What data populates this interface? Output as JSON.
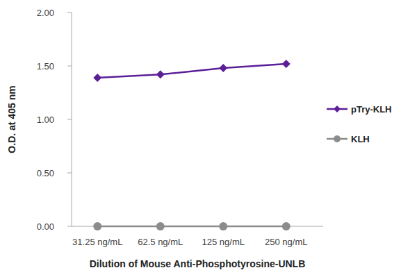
{
  "chart_data": {
    "type": "line",
    "x_label": "Dilution of Mouse Anti-Phosphotyrosine-UNLB",
    "y_label": "O.D. at 405 nm",
    "categories": [
      "31.25 ng/mL",
      "62.5 ng/mL",
      "125 ng/mL",
      "250 ng/mL"
    ],
    "series": [
      {
        "name": "pTry-KLH",
        "color": "#5b1f98",
        "marker": "diamond",
        "values": [
          1.39,
          1.42,
          1.48,
          1.52
        ]
      },
      {
        "name": "KLH",
        "color": "#8c8c8c",
        "marker": "circle",
        "values": [
          0,
          0,
          0,
          0
        ]
      }
    ],
    "ylim": [
      0,
      2
    ],
    "yticks": [
      {
        "value": 0,
        "label": "0.00"
      },
      {
        "value": 0.5,
        "label": "0.50"
      },
      {
        "value": 1,
        "label": "1.00"
      },
      {
        "value": 1.5,
        "label": "1.50"
      },
      {
        "value": 2,
        "label": "2.00"
      }
    ],
    "grid": false,
    "legend": "right"
  }
}
